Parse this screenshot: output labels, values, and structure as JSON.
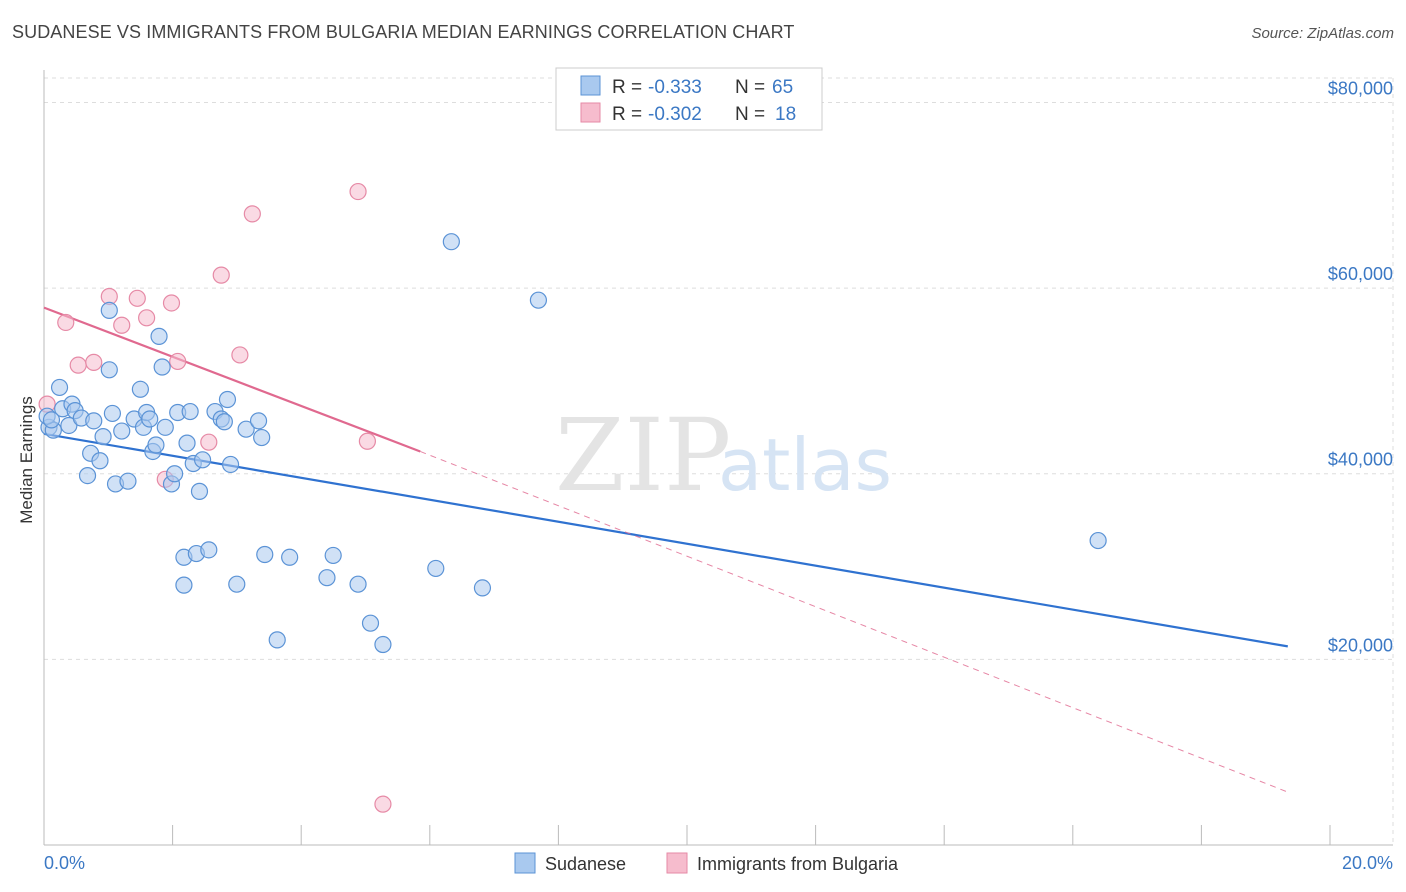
{
  "title": "SUDANESE VS IMMIGRANTS FROM BULGARIA MEDIAN EARNINGS CORRELATION CHART",
  "source": "Source: ZipAtlas.com",
  "watermark": {
    "zip": "ZIP",
    "atlas": "atlas"
  },
  "colors": {
    "blue_fill": "#a9c9ef",
    "blue_stroke": "#5b93d6",
    "blue_line": "#2f72d0",
    "pink_fill": "#f6bccd",
    "pink_stroke": "#e68aa6",
    "pink_line": "#e0698f",
    "grid": "#dddddd",
    "tick_label": "#3b78c4"
  },
  "legend": {
    "rows": [
      {
        "r_label": "R = ",
        "r_value": "-0.333",
        "n_label": "N = ",
        "n_value": "65"
      },
      {
        "r_label": "R = ",
        "r_value": "-0.302",
        "n_label": "N = ",
        "n_value": "18"
      }
    ]
  },
  "chart_data": {
    "type": "scatter",
    "title": "SUDANESE VS IMMIGRANTS FROM BULGARIA MEDIAN EARNINGS CORRELATION CHART",
    "xlabel": "",
    "ylabel": "Median Earnings",
    "xlim": [
      0,
      0.21
    ],
    "ylim": [
      0,
      83500
    ],
    "x_tick_labels": [
      "0.0%",
      "20.0%"
    ],
    "y_ticks": [
      20000,
      40000,
      60000,
      80000
    ],
    "y_tick_labels": [
      "$20,000",
      "$40,000",
      "$60,000",
      "$80,000"
    ],
    "grid": true,
    "legend_position": "top-center",
    "series": [
      {
        "name": "Sudanese",
        "R": -0.333,
        "N": 65,
        "trend": {
          "x": [
            0,
            0.2
          ],
          "y": [
            44300,
            21400
          ],
          "dashed_extension": false
        },
        "points": [
          [
            0.0008,
            45000
          ],
          [
            0.0015,
            44700
          ],
          [
            0.0025,
            49300
          ],
          [
            0.003,
            47000
          ],
          [
            0.004,
            45200
          ],
          [
            0.0045,
            47500
          ],
          [
            0.005,
            46800
          ],
          [
            0.006,
            46000
          ],
          [
            0.007,
            39800
          ],
          [
            0.0075,
            42200
          ],
          [
            0.008,
            45700
          ],
          [
            0.009,
            41400
          ],
          [
            0.0095,
            44000
          ],
          [
            0.0105,
            51200
          ],
          [
            0.0105,
            57600
          ],
          [
            0.011,
            46500
          ],
          [
            0.0115,
            38900
          ],
          [
            0.0125,
            44600
          ],
          [
            0.0135,
            39200
          ],
          [
            0.0145,
            45900
          ],
          [
            0.0155,
            49100
          ],
          [
            0.016,
            45000
          ],
          [
            0.0165,
            46600
          ],
          [
            0.017,
            45900
          ],
          [
            0.0175,
            42400
          ],
          [
            0.018,
            43100
          ],
          [
            0.0185,
            54800
          ],
          [
            0.019,
            51500
          ],
          [
            0.0195,
            45000
          ],
          [
            0.0205,
            38900
          ],
          [
            0.021,
            40000
          ],
          [
            0.0215,
            46600
          ],
          [
            0.0225,
            31000
          ],
          [
            0.0225,
            28000
          ],
          [
            0.023,
            43300
          ],
          [
            0.0235,
            46700
          ],
          [
            0.024,
            41100
          ],
          [
            0.0245,
            31400
          ],
          [
            0.025,
            38100
          ],
          [
            0.0255,
            41500
          ],
          [
            0.0265,
            31800
          ],
          [
            0.0275,
            46700
          ],
          [
            0.0285,
            45900
          ],
          [
            0.029,
            45600
          ],
          [
            0.0295,
            48000
          ],
          [
            0.03,
            41000
          ],
          [
            0.031,
            28100
          ],
          [
            0.0325,
            44800
          ],
          [
            0.0345,
            45700
          ],
          [
            0.035,
            43900
          ],
          [
            0.0355,
            31300
          ],
          [
            0.0375,
            22100
          ],
          [
            0.0395,
            31000
          ],
          [
            0.0455,
            28800
          ],
          [
            0.0465,
            31200
          ],
          [
            0.0505,
            28100
          ],
          [
            0.0525,
            23900
          ],
          [
            0.0545,
            21600
          ],
          [
            0.063,
            29800
          ],
          [
            0.0655,
            65000
          ],
          [
            0.0705,
            27700
          ],
          [
            0.0795,
            58700
          ],
          [
            0.1695,
            32800
          ],
          [
            0.0005,
            46200
          ],
          [
            0.0012,
            45800
          ]
        ]
      },
      {
        "name": "Immigrants from Bulgaria",
        "R": -0.302,
        "N": 18,
        "trend": {
          "x": [
            0,
            0.0605
          ],
          "y": [
            57900,
            42400
          ],
          "dashed_extension": true,
          "dashed_to": [
            0.2,
            5700
          ]
        },
        "points": [
          [
            0.0005,
            47500
          ],
          [
            0.0035,
            56300
          ],
          [
            0.0055,
            51700
          ],
          [
            0.008,
            52000
          ],
          [
            0.0105,
            59100
          ],
          [
            0.0125,
            56000
          ],
          [
            0.015,
            58900
          ],
          [
            0.0165,
            56800
          ],
          [
            0.0195,
            39400
          ],
          [
            0.0205,
            58400
          ],
          [
            0.0215,
            52100
          ],
          [
            0.0265,
            43400
          ],
          [
            0.0285,
            61400
          ],
          [
            0.0315,
            52800
          ],
          [
            0.0335,
            68000
          ],
          [
            0.052,
            43500
          ],
          [
            0.0505,
            70400
          ],
          [
            0.0545,
            4400
          ]
        ]
      }
    ]
  }
}
